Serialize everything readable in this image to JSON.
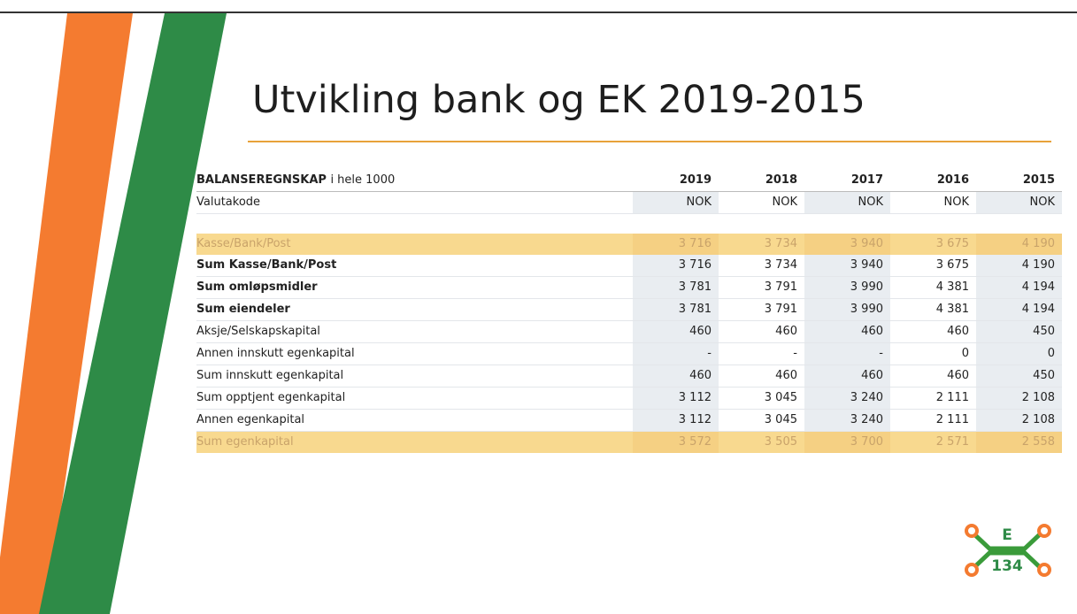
{
  "title": "Utvikling bank og EK 2019-2015",
  "table": {
    "header": {
      "label_bold": "BALANSEREGNSKAP",
      "label_rest": "i hele 1000",
      "years": [
        "2019",
        "2018",
        "2017",
        "2016",
        "2015"
      ]
    },
    "rows": [
      {
        "label": "Valutakode",
        "style": "normal",
        "cells": [
          "NOK",
          "NOK",
          "NOK",
          "NOK",
          "NOK"
        ]
      },
      {
        "label": "Kasse/Bank/Post",
        "style": "highlight",
        "cells": [
          "3 716",
          "3 734",
          "3 940",
          "3 675",
          "4 190"
        ]
      },
      {
        "label": "Sum Kasse/Bank/Post",
        "style": "bold",
        "cells": [
          "3 716",
          "3 734",
          "3 940",
          "3 675",
          "4 190"
        ]
      },
      {
        "label": "Sum omløpsmidler",
        "style": "bold",
        "cells": [
          "3 781",
          "3 791",
          "3 990",
          "4 381",
          "4 194"
        ]
      },
      {
        "label": "Sum eiendeler",
        "style": "bold",
        "cells": [
          "3 781",
          "3 791",
          "3 990",
          "4 381",
          "4 194"
        ]
      },
      {
        "label": "Aksje/Selskapskapital",
        "style": "normal",
        "cells": [
          "460",
          "460",
          "460",
          "460",
          "450"
        ]
      },
      {
        "label": "Annen innskutt egenkapital",
        "style": "normal",
        "cells": [
          "-",
          "-",
          "-",
          "0",
          "0"
        ]
      },
      {
        "label": "Sum innskutt egenkapital",
        "style": "normal",
        "cells": [
          "460",
          "460",
          "460",
          "460",
          "450"
        ]
      },
      {
        "label": "Sum opptjent egenkapital",
        "style": "normal",
        "cells": [
          "3 112",
          "3 045",
          "3 240",
          "2 111",
          "2 108"
        ]
      },
      {
        "label": "Annen egenkapital",
        "style": "normal",
        "cells": [
          "3 112",
          "3 045",
          "3 240",
          "2 111",
          "2 108"
        ]
      },
      {
        "label": "Sum egenkapital",
        "style": "highlight",
        "cells": [
          "3 572",
          "3 505",
          "3 700",
          "2 571",
          "2 558"
        ]
      }
    ]
  },
  "logo": {
    "top": "E",
    "bottom": "134"
  }
}
